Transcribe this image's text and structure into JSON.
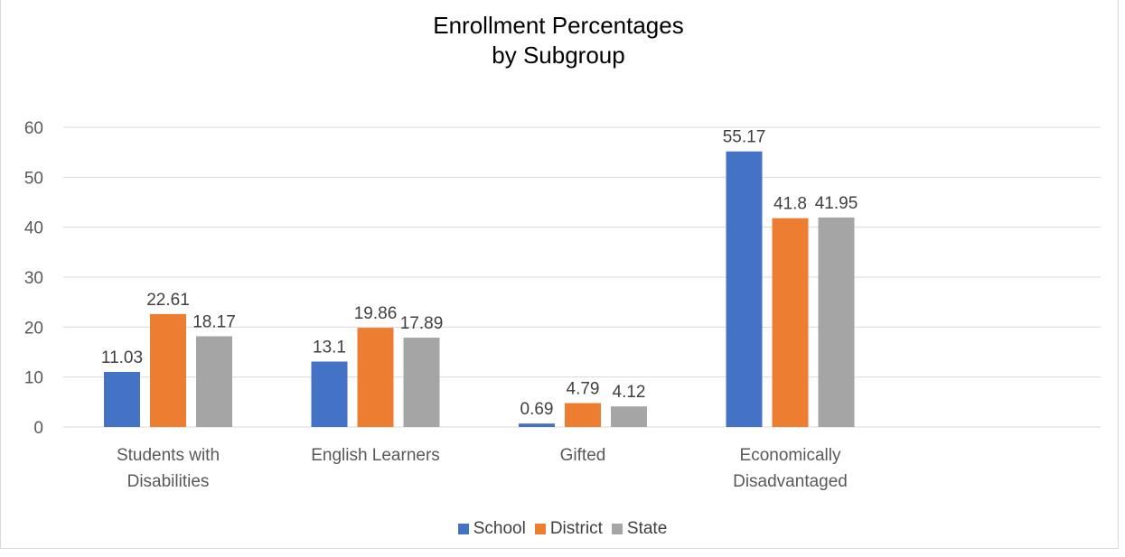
{
  "chart_data": {
    "type": "bar",
    "title_lines": [
      "Enrollment Percentages",
      "by Subgroup"
    ],
    "categories": [
      [
        "Students with",
        "Disabilities"
      ],
      [
        "English Learners"
      ],
      [
        "Gifted"
      ],
      [
        "Economically",
        "Disadvantaged"
      ]
    ],
    "series": [
      {
        "name": "School",
        "color": "#4472c4",
        "values": [
          11.03,
          13.1,
          0.69,
          55.17
        ]
      },
      {
        "name": "District",
        "color": "#ed7d31",
        "values": [
          22.61,
          19.86,
          4.79,
          41.8
        ]
      },
      {
        "name": "State",
        "color": "#a5a5a5",
        "values": [
          18.17,
          17.89,
          4.12,
          41.95
        ]
      }
    ],
    "ylim": [
      0,
      60
    ],
    "yticks": [
      0,
      10,
      20,
      30,
      40,
      50,
      60
    ],
    "grid": true,
    "legend_position": "bottom"
  }
}
